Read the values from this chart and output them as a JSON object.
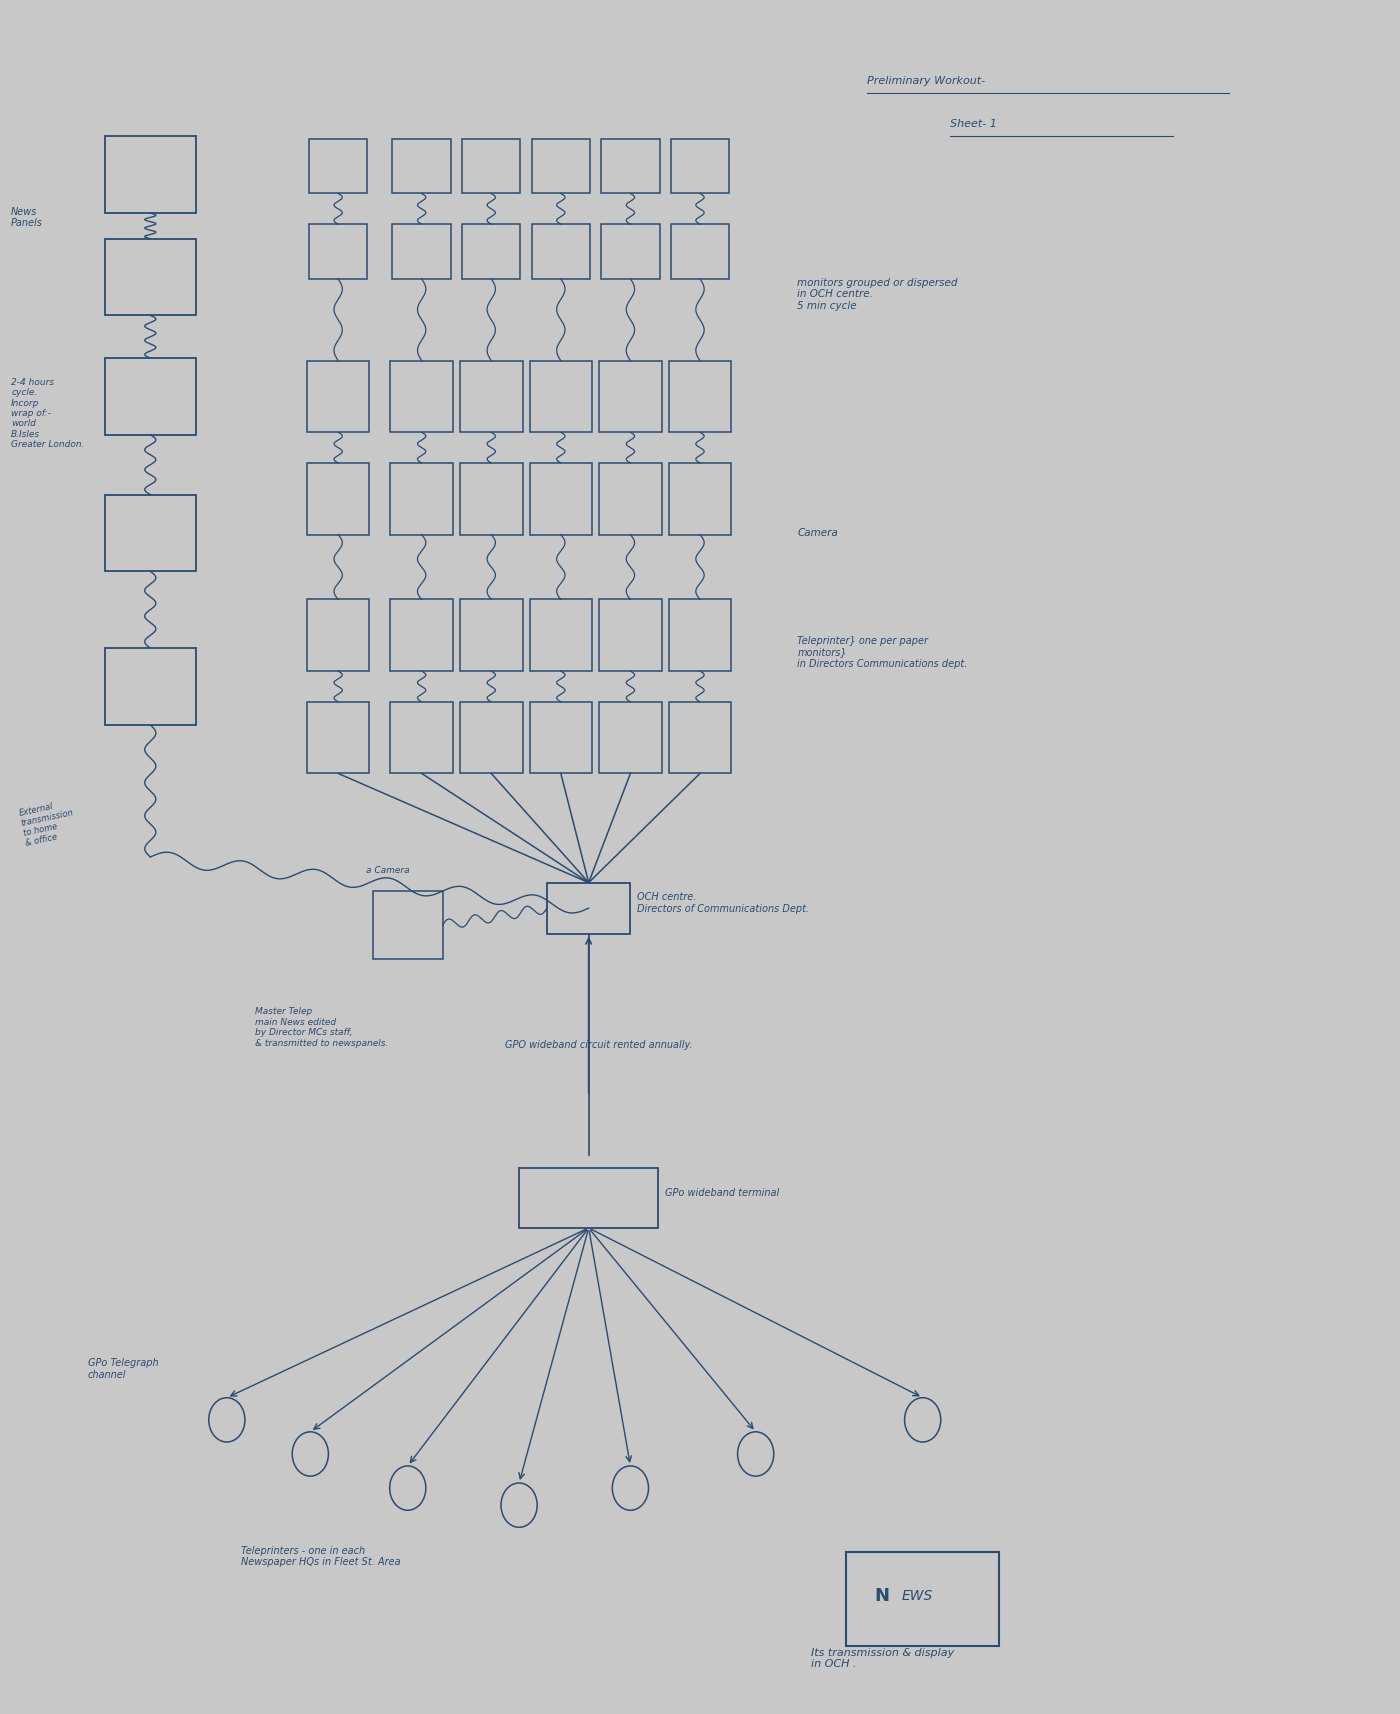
{
  "background_color": "#F7F5C8",
  "border_color": "#C8C8C8",
  "ink_color": "#2B4B6F",
  "preliminary_line1": "Preliminary Workout-",
  "preliminary_line2": "Sheet- 1",
  "monitors_note": "monitors grouped or dispersed\nin OCH centre.\n5 min cycle",
  "camera_note": "Camera",
  "teleprinter_note": "Teleprinter} one per paper\nmonitors}\nin Directors Communications dept.",
  "news_panels_label": "News\nPanels",
  "news_panels_detail": "2-4 hours\ncycle.\nIncorp\nwrap of:-\nworld\nB.Isles\nGreater London.",
  "external_label": "External\ntransmission\nto home\n& office",
  "master_telep": "Master Telep\nmain News edited\nby Director MCs staff,\n& transmitted to newspanels.",
  "och_centre": "OCH centre.\nDirectors of Communications Dept.",
  "camera_label": "a Camera",
  "gpo_circuit": "GPO wideband circuit rented annually.",
  "gpo_terminal": "GPo wideband terminal",
  "gpo_telegraph": "GPo Telegraph\nchannel",
  "teleprinters_note": "Teleprinters - one in each\nNewspaper HQs in Fleet St. Area",
  "news_label_N": "N",
  "news_label_EWS": "EWS",
  "subtitle": "Its transmission & display\nin OCH ."
}
